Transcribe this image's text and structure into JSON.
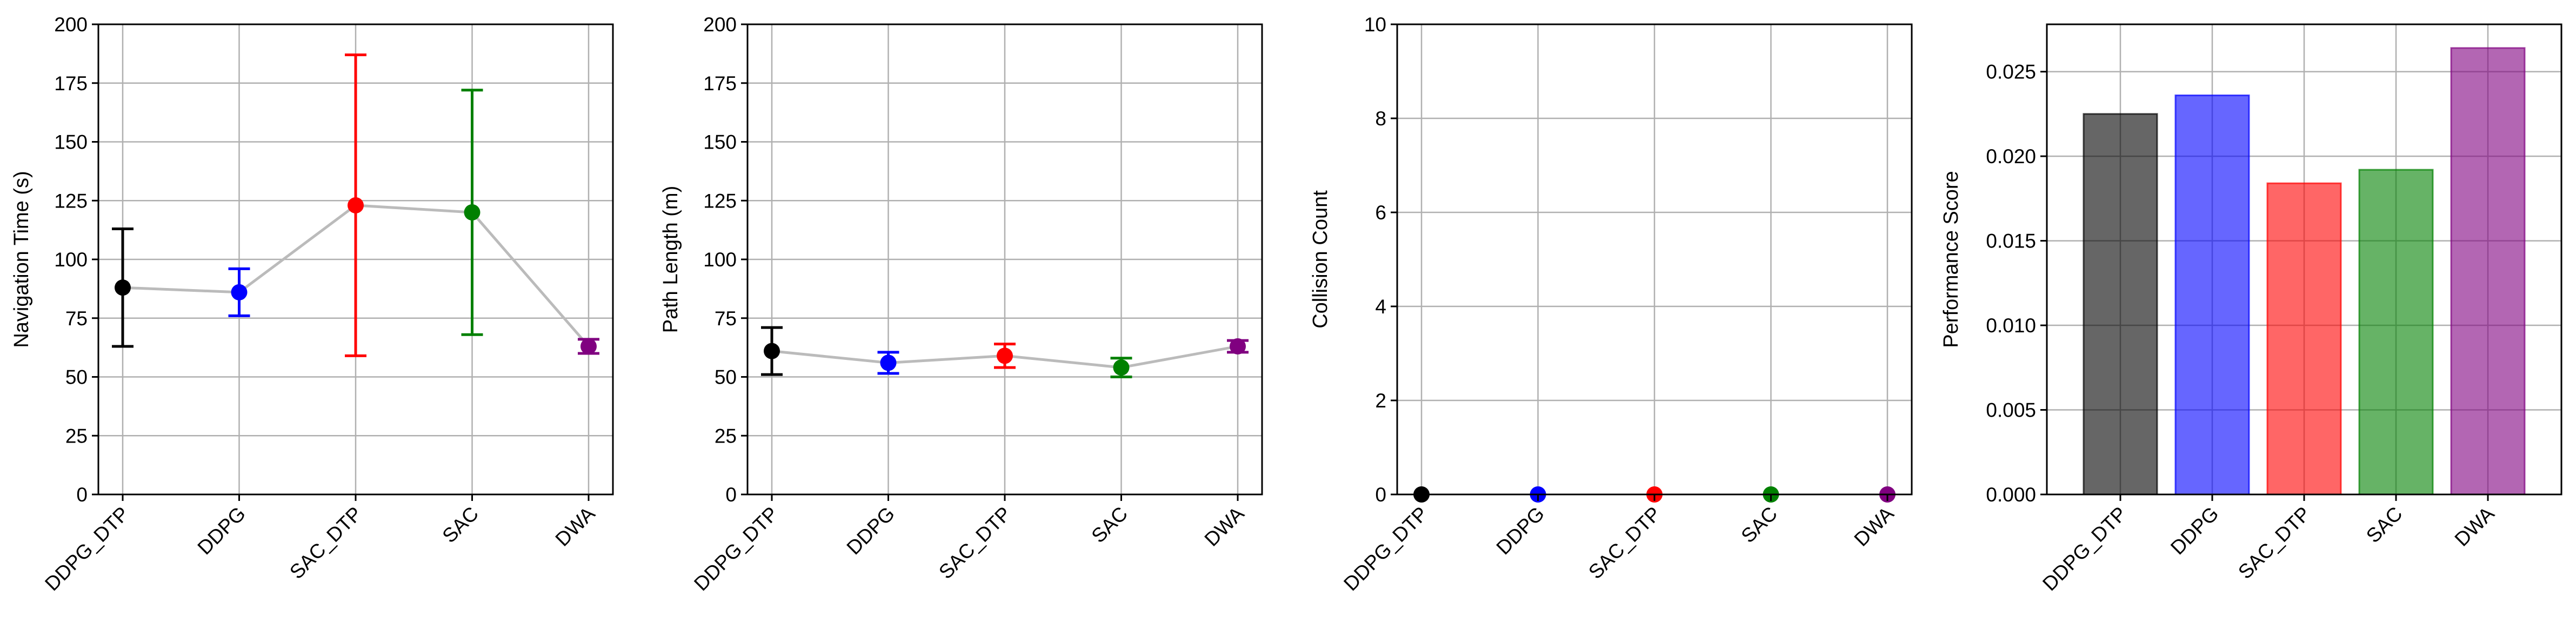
{
  "chart_data": [
    {
      "type": "scatter",
      "categories": [
        "DDPG_DTP",
        "DDPG",
        "SAC_DTP",
        "SAC",
        "DWA"
      ],
      "ylabel": "Navigation Time (s)",
      "ylim": [
        0,
        200
      ],
      "yticks": [
        0,
        25,
        50,
        75,
        100,
        125,
        150,
        175,
        200
      ],
      "ytick_labels": [
        "0",
        "25",
        "50",
        "75",
        "100",
        "125",
        "150",
        "175",
        "200"
      ],
      "values": [
        88,
        86,
        123,
        120,
        63
      ],
      "errors": [
        25,
        10,
        64,
        52,
        3
      ],
      "point_colors": [
        "#000000",
        "#0000ff",
        "#ff0000",
        "#008000",
        "#800080"
      ],
      "connector": true,
      "connector_color": "#bbbbbb",
      "grid": true
    },
    {
      "type": "scatter",
      "categories": [
        "DDPG_DTP",
        "DDPG",
        "SAC_DTP",
        "SAC",
        "DWA"
      ],
      "ylabel": "Path Length (m)",
      "ylim": [
        0,
        200
      ],
      "yticks": [
        0,
        25,
        50,
        75,
        100,
        125,
        150,
        175,
        200
      ],
      "ytick_labels": [
        "0",
        "25",
        "50",
        "75",
        "100",
        "125",
        "150",
        "175",
        "200"
      ],
      "values": [
        61,
        56,
        59,
        54,
        63
      ],
      "errors": [
        10,
        4.5,
        5,
        4,
        2.5
      ],
      "point_colors": [
        "#000000",
        "#0000ff",
        "#ff0000",
        "#008000",
        "#800080"
      ],
      "connector": true,
      "connector_color": "#bbbbbb",
      "grid": true
    },
    {
      "type": "scatter",
      "categories": [
        "DDPG_DTP",
        "DDPG",
        "SAC_DTP",
        "SAC",
        "DWA"
      ],
      "ylabel": "Collision Count",
      "ylim": [
        0,
        10
      ],
      "yticks": [
        0,
        2,
        4,
        6,
        8,
        10
      ],
      "ytick_labels": [
        "0",
        "2",
        "4",
        "6",
        "8",
        "10"
      ],
      "values": [
        0,
        0,
        0,
        0,
        0
      ],
      "errors": [
        0,
        0,
        0,
        0,
        0
      ],
      "point_colors": [
        "#000000",
        "#0000ff",
        "#ff0000",
        "#008000",
        "#800080"
      ],
      "connector": false,
      "grid": true
    },
    {
      "type": "bar",
      "categories": [
        "DDPG_DTP",
        "DDPG",
        "SAC_DTP",
        "SAC",
        "DWA"
      ],
      "ylabel": "Performance Score",
      "ylim": [
        0,
        0.0278
      ],
      "yticks": [
        0,
        0.005,
        0.01,
        0.015,
        0.02,
        0.025
      ],
      "ytick_labels": [
        "0.000",
        "0.005",
        "0.010",
        "0.015",
        "0.020",
        "0.025"
      ],
      "values": [
        0.0225,
        0.0236,
        0.0184,
        0.0192,
        0.0264
      ],
      "bar_colors": [
        "#000000",
        "#0000ff",
        "#ff0000",
        "#008000",
        "#800080"
      ],
      "bar_opacity": 0.6,
      "grid": true
    }
  ]
}
